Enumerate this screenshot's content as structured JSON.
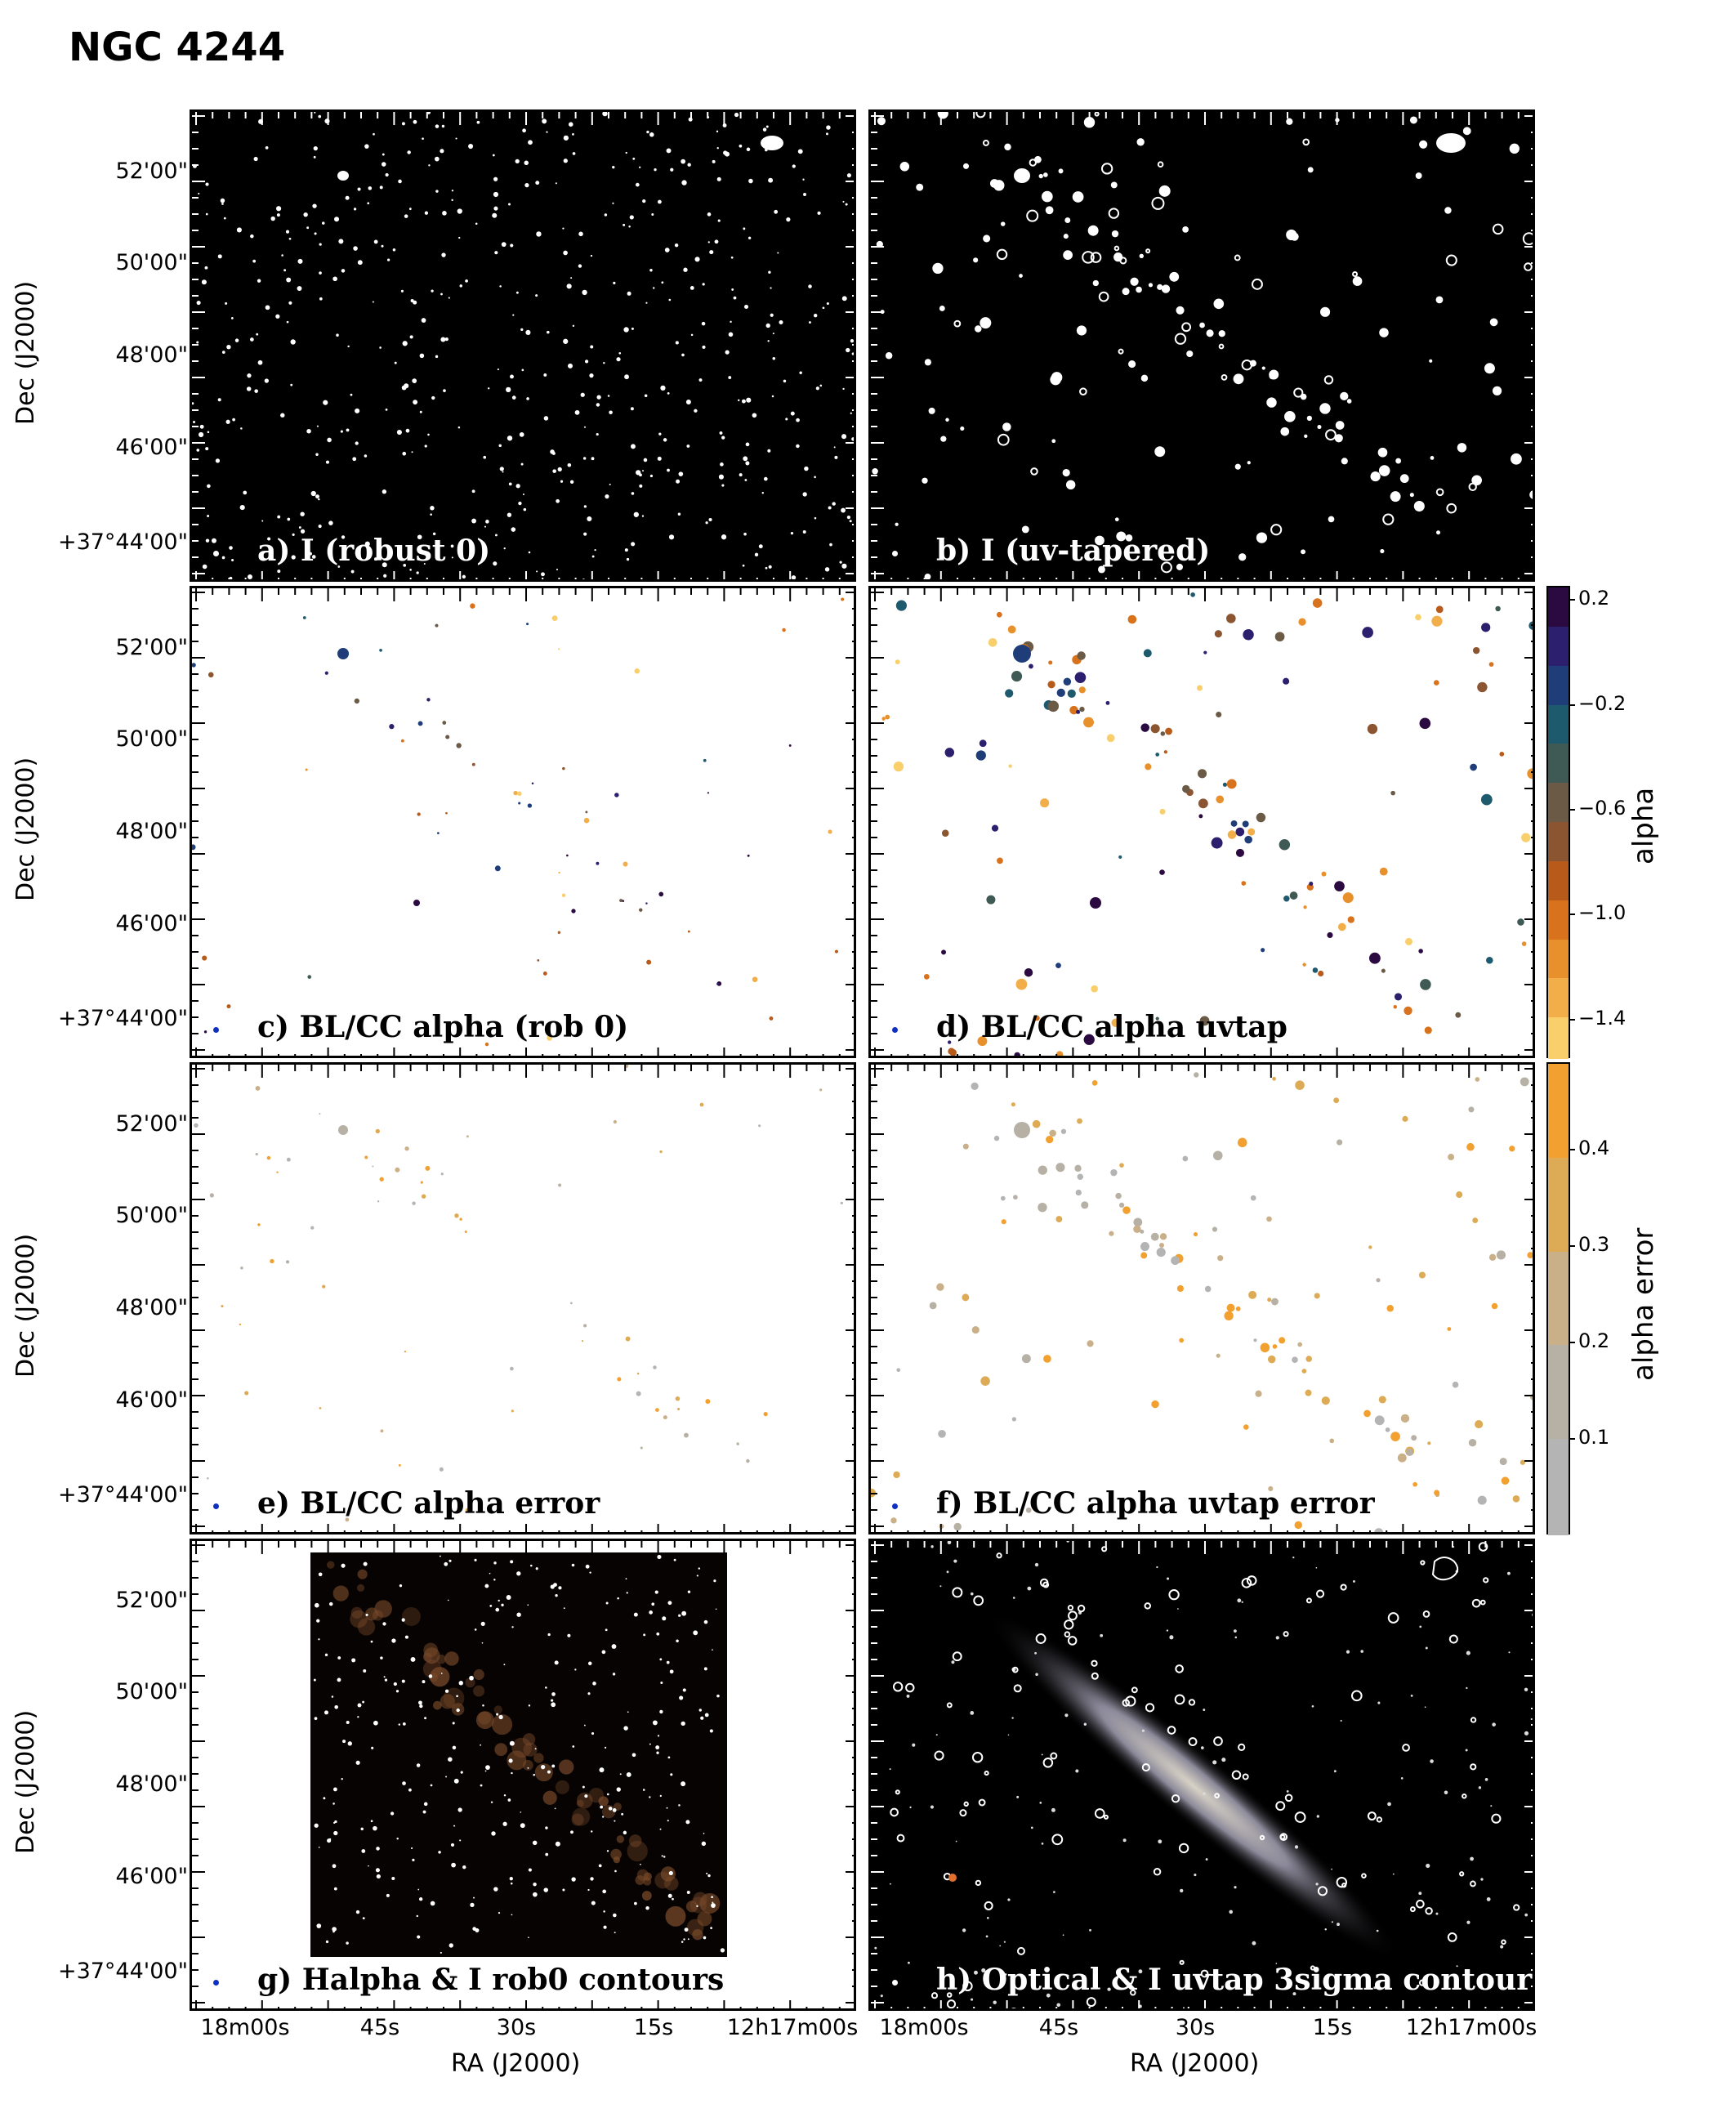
{
  "figure": {
    "title": "NGC 4244",
    "y_axis_title": "Dec (J2000)",
    "x_axis_title": "RA (J2000)",
    "dec_ticks": [
      "52'00\"",
      "50'00\"",
      "48'00\"",
      "46'00\"",
      "+37°44'00\""
    ],
    "ra_ticks": [
      "18m00s",
      "45s",
      "30s",
      "15s",
      "12h17m00s"
    ]
  },
  "panels": [
    {
      "id": "a",
      "label": "a) I (robust 0)",
      "style": "dark-points",
      "beam_color": "#ffffff"
    },
    {
      "id": "b",
      "label": "b) I (uv-tapered)",
      "style": "dark-blobs",
      "beam_color": "#ffffff"
    },
    {
      "id": "c",
      "label": "c) BL/CC alpha (rob 0)",
      "style": "alpha-sparse",
      "beam_color": "#1030c0"
    },
    {
      "id": "d",
      "label": "d) BL/CC alpha uvtap",
      "style": "alpha-dense",
      "beam_color": "#1030c0"
    },
    {
      "id": "e",
      "label": "e)  BL/CC alpha error",
      "style": "err-sparse",
      "beam_color": "#1030c0"
    },
    {
      "id": "f",
      "label": "f) BL/CC alpha uvtap error",
      "style": "err-dense",
      "beam_color": "#1030c0"
    },
    {
      "id": "g",
      "label": "g) Halpha & I rob0 contours",
      "style": "halpha",
      "beam_color": "#1030c0"
    },
    {
      "id": "h",
      "label": "h) Optical & I uvtap 3sigma contour",
      "style": "optical",
      "beam_color": "#ffffff"
    }
  ],
  "colorbars": [
    {
      "id": "alpha",
      "title": "alpha",
      "ticks": [
        "0.2",
        "−0.2",
        "−0.6",
        "−1.0",
        "−1.4"
      ],
      "tick_values": [
        0.2,
        -0.2,
        -0.6,
        -1.0,
        -1.4
      ],
      "range": [
        -1.55,
        0.25
      ],
      "colors_top_to_bottom": [
        "#2a0a40",
        "#2b1f6e",
        "#1f3d78",
        "#1e5a6e",
        "#3f5a55",
        "#6b5a45",
        "#8a5530",
        "#b85a1a",
        "#d8721c",
        "#e8902c",
        "#f2ae48",
        "#f8cf6a"
      ]
    },
    {
      "id": "alpha_error",
      "title": "alpha error",
      "ticks": [
        "0.4",
        "0.3",
        "0.2",
        "0.1"
      ],
      "tick_values": [
        0.4,
        0.3,
        0.2,
        0.1
      ],
      "range": [
        0.0,
        0.49
      ],
      "colors_top_to_bottom": [
        "#f2a030",
        "#ddab55",
        "#c9b089",
        "#b7b1a5",
        "#b4b4b4"
      ]
    }
  ]
}
